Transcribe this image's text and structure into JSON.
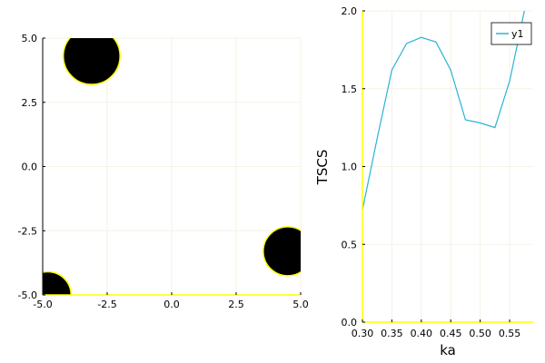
{
  "chart_data": [
    {
      "type": "scatter",
      "xlim": [
        -5,
        5
      ],
      "ylim": [
        -5,
        5
      ],
      "x_ticks": [
        "-5.0",
        "-2.5",
        "0.0",
        "2.5",
        "5.0"
      ],
      "y_ticks": [
        "-5.0",
        "-2.5",
        "0.0",
        "2.5",
        "5.0"
      ],
      "grid": true,
      "aspect": "equal",
      "marker_color": "#000000",
      "edge_color": "#ffff00",
      "circles": [
        {
          "cx": -3.1,
          "cy": 4.3,
          "r": 1.1
        },
        {
          "cx": 4.5,
          "cy": -3.3,
          "r": 0.95
        },
        {
          "cx": -4.8,
          "cy": -5.0,
          "r": 0.9
        }
      ]
    },
    {
      "type": "line",
      "xlabel": "ka",
      "ylabel": "TSCS",
      "xlim": [
        0.3,
        0.59
      ],
      "ylim": [
        0.0,
        2.0
      ],
      "x_ticks": [
        "0.30",
        "0.35",
        "0.40",
        "0.45",
        "0.50",
        "0.55"
      ],
      "y_ticks": [
        "0.0",
        "0.5",
        "1.0",
        "1.5",
        "2.0"
      ],
      "grid": true,
      "legend": "top-right",
      "series": [
        {
          "name": "y1",
          "color": "#2bb3d6",
          "x": [
            0.3,
            0.325,
            0.35,
            0.375,
            0.4,
            0.425,
            0.45,
            0.475,
            0.5,
            0.525,
            0.55,
            0.575
          ],
          "y": [
            0.72,
            1.18,
            1.62,
            1.79,
            1.83,
            1.8,
            1.62,
            1.3,
            1.28,
            1.25,
            1.55,
            2.0
          ]
        }
      ]
    }
  ]
}
